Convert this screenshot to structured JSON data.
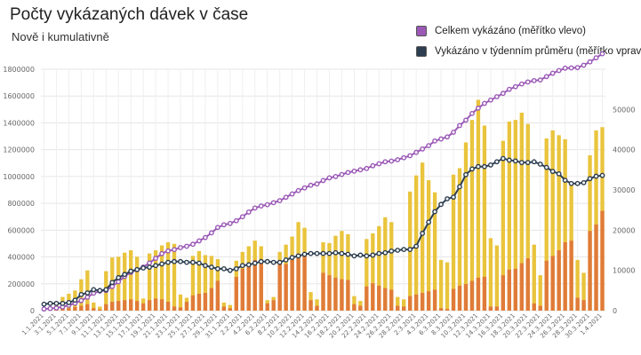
{
  "header": {
    "title": "Počty vykázaných dávek v čase",
    "subtitle": "Nově i kumulativně"
  },
  "legend": [
    {
      "label": "Celkem vykázáno (měřítko vlevo)",
      "color": "#9b59b6"
    },
    {
      "label": "Vykázáno v týdenním průměru (měřítko vpravo)",
      "color": "#2c3e50"
    }
  ],
  "chart_data": {
    "type": "bar",
    "colors": {
      "bar_top": "#e9c43c",
      "bar_bottom": "#e07b39",
      "cumulative": "#9b59b6",
      "weekly": "#2c3e50"
    },
    "x": [
      "1.1.2021",
      "2.1.2021",
      "3.1.2021",
      "4.1.2021",
      "5.1.2021",
      "6.1.2021",
      "7.1.2021",
      "8.1.2021",
      "9.1.2021",
      "10.1.2021",
      "11.1.2021",
      "12.1.2021",
      "13.1.2021",
      "14.1.2021",
      "15.1.2021",
      "16.1.2021",
      "17.1.2021",
      "18.1.2021",
      "19.1.2021",
      "20.1.2021",
      "21.1.2021",
      "22.1.2021",
      "23.1.2021",
      "24.1.2021",
      "25.1.2021",
      "26.1.2021",
      "27.1.2021",
      "28.1.2021",
      "29.1.2021",
      "30.1.2021",
      "31.1.2021",
      "1.2.2021",
      "2.2.2021",
      "3.2.2021",
      "4.2.2021",
      "5.2.2021",
      "6.2.2021",
      "7.2.2021",
      "8.2.2021",
      "9.2.2021",
      "10.2.2021",
      "11.2.2021",
      "12.2.2021",
      "13.2.2021",
      "14.2.2021",
      "15.2.2021",
      "16.2.2021",
      "17.2.2021",
      "18.2.2021",
      "19.2.2021",
      "20.2.2021",
      "21.2.2021",
      "22.2.2021",
      "23.2.2021",
      "24.2.2021",
      "25.2.2021",
      "26.2.2021",
      "27.2.2021",
      "28.2.2021",
      "1.3.2021",
      "2.3.2021",
      "3.3.2021",
      "4.3.2021",
      "5.3.2021",
      "6.3.2021",
      "7.3.2021",
      "8.3.2021",
      "9.3.2021",
      "10.3.2021",
      "11.3.2021",
      "12.3.2021",
      "13.3.2021",
      "14.3.2021",
      "15.3.2021",
      "16.3.2021",
      "17.3.2021",
      "18.3.2021",
      "19.3.2021",
      "20.3.2021",
      "21.3.2021",
      "22.3.2021",
      "23.3.2021",
      "24.3.2021",
      "25.3.2021",
      "26.3.2021",
      "27.3.2021",
      "28.3.2021",
      "29.3.2021",
      "30.3.2021",
      "31.3.2021",
      "1.4.2021"
    ],
    "x_tick_labels": [
      "1.1.2021",
      "3.1.2021",
      "5.1.2021",
      "7.1.2021",
      "9.1.2021",
      "11.1.2021",
      "13.1.2021",
      "15.1.2021",
      "17.1.2021",
      "19.1.2021",
      "21.1.2021",
      "23.1.2021",
      "25.1.2021",
      "27.1.2021",
      "29.1.2021",
      "31.1.2021",
      "2.2.2021",
      "4.2.2021",
      "6.2.2021",
      "8.2.2021",
      "10.2.2021",
      "12.2.2021",
      "14.2.2021",
      "16.2.2021",
      "18.2.2021",
      "20.2.2021",
      "22.2.2021",
      "24.2.2021",
      "26.2.2021",
      "28.2.2021",
      "2.3.2021",
      "4.3.2021",
      "6.3.2021",
      "8.3.2021",
      "10.3.2021",
      "12.3.2021",
      "14.3.2021",
      "16.3.2021",
      "18.3.2021",
      "20.3.2021",
      "22.3.2021",
      "24.3.2021",
      "26.3.2021",
      "28.3.2021",
      "30.3.2021",
      "1.4.2021"
    ],
    "y_left": {
      "ylim": [
        0,
        1800000
      ],
      "ticks": [
        "0",
        "200000",
        "400000",
        "600000",
        "800000",
        "1000000",
        "1200000",
        "1400000",
        "1600000",
        "1800000"
      ]
    },
    "y_right": {
      "ylim": [
        0,
        60000
      ],
      "ticks": [
        "0",
        "10000",
        "20000",
        "30000",
        "40000",
        "50000"
      ]
    },
    "series": [
      {
        "name": "",
        "axis": "right",
        "kind": "bar-stacked-bottom",
        "values": [
          200,
          100,
          300,
          400,
          600,
          900,
          1200,
          1600,
          600,
          300,
          1600,
          2200,
          2400,
          2600,
          2800,
          2400,
          1800,
          2600,
          3000,
          2800,
          2200,
          1000,
          800,
          2200,
          3800,
          4200,
          4400,
          5600,
          7400,
          1000,
          600,
          8400,
          10400,
          11400,
          12600,
          12000,
          1800,
          2600,
          12000,
          11600,
          12600,
          13600,
          14000,
          2600,
          1200,
          9400,
          8800,
          8200,
          7800,
          7600,
          1600,
          1200,
          6000,
          6800,
          6200,
          5600,
          5200,
          1200,
          1000,
          3600,
          4000,
          4400,
          4800,
          5200,
          600,
          400,
          5400,
          6200,
          6600,
          7400,
          8200,
          8400,
          1000,
          1000,
          8800,
          10200,
          10400,
          11800,
          13000,
          1800,
          1200,
          12400,
          13600,
          15000,
          17000,
          17400,
          3200,
          2600,
          19800,
          21400,
          24800
        ]
      },
      {
        "name": "",
        "axis": "right",
        "kind": "bar-total",
        "values": [
          400,
          300,
          1400,
          3400,
          4200,
          5000,
          7800,
          10000,
          2000,
          1000,
          9800,
          13200,
          13400,
          14400,
          15000,
          13400,
          3000,
          14200,
          15000,
          16200,
          17000,
          16600,
          4000,
          3200,
          13600,
          14800,
          13800,
          13600,
          12800,
          2000,
          1400,
          12400,
          14600,
          16000,
          17400,
          16000,
          2600,
          3400,
          14600,
          16400,
          18400,
          22000,
          20600,
          4600,
          2800,
          17000,
          16800,
          18600,
          19800,
          19000,
          3600,
          2400,
          17800,
          19200,
          21000,
          23200,
          22000,
          3400,
          2800,
          29600,
          33600,
          36800,
          32400,
          29400,
          12600,
          12000,
          33800,
          35400,
          41800,
          47400,
          52400,
          46000,
          18000,
          16200,
          42200,
          47000,
          47400,
          49200,
          46400,
          16400,
          8800,
          42800,
          44800,
          43600,
          42600,
          32000,
          12600,
          9400,
          38600,
          44800,
          45600
        ]
      },
      {
        "name": "",
        "axis": "left",
        "kind": "line-cumulative",
        "values": [
          12000,
          16000,
          20000,
          28000,
          40000,
          55000,
          75000,
          100000,
          130000,
          145000,
          150000,
          180000,
          215000,
          255000,
          285000,
          305000,
          325000,
          355000,
          390000,
          425000,
          445000,
          455000,
          470000,
          480000,
          495000,
          520000,
          545000,
          580000,
          620000,
          640000,
          650000,
          670000,
          700000,
          735000,
          765000,
          780000,
          790000,
          805000,
          820000,
          845000,
          870000,
          895000,
          915000,
          935000,
          945000,
          970000,
          990000,
          1000000,
          1015000,
          1030000,
          1040000,
          1050000,
          1060000,
          1080000,
          1095000,
          1110000,
          1115000,
          1125000,
          1140000,
          1155000,
          1180000,
          1205000,
          1230000,
          1265000,
          1280000,
          1295000,
          1330000,
          1380000,
          1420000,
          1470000,
          1510000,
          1545000,
          1570000,
          1595000,
          1620000,
          1650000,
          1670000,
          1690000,
          1705000,
          1715000,
          1720000,
          1745000,
          1770000,
          1790000,
          1808000,
          1810000,
          1812000,
          1830000,
          1855000,
          1885000,
          1915000
        ]
      },
      {
        "name": "",
        "axis": "right",
        "kind": "line-weekly",
        "values": [
          1600,
          1800,
          1800,
          1800,
          2000,
          2600,
          4000,
          4400,
          5200,
          5000,
          5200,
          7000,
          8200,
          9000,
          9800,
          10200,
          10600,
          10800,
          11200,
          11600,
          12000,
          12200,
          12200,
          12000,
          12000,
          11800,
          11200,
          10800,
          10400,
          10400,
          10000,
          10400,
          11200,
          11400,
          11800,
          12200,
          12200,
          12000,
          12000,
          12600,
          13200,
          13600,
          14000,
          14200,
          14200,
          14200,
          14200,
          14400,
          14200,
          14000,
          13600,
          13800,
          13600,
          13800,
          14200,
          14400,
          14800,
          15000,
          15200,
          15200,
          16000,
          19200,
          22000,
          24600,
          26400,
          27800,
          28200,
          30800,
          33800,
          35200,
          35800,
          35800,
          36200,
          37000,
          37800,
          37400,
          37200,
          36800,
          36800,
          37000,
          36400,
          35600,
          34600,
          34000,
          32400,
          31600,
          31600,
          31800,
          32800,
          33400,
          33600
        ]
      }
    ]
  }
}
